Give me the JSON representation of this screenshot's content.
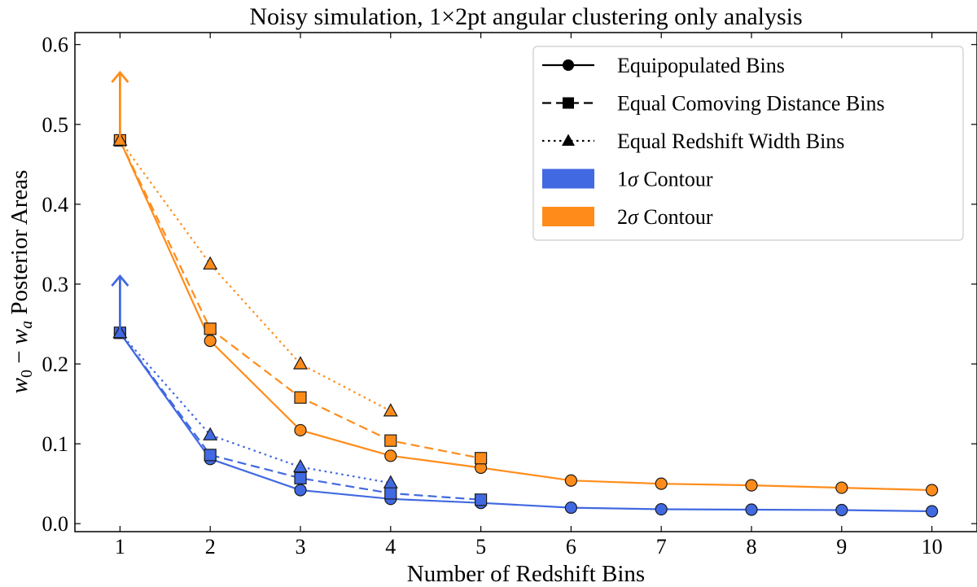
{
  "chart_data": {
    "type": "line",
    "title": "Noisy simulation, 1×2pt angular clustering only analysis",
    "xlabel": "Number of Redshift Bins",
    "ylabel_parts": [
      "w",
      "0",
      " − ",
      "w",
      "a",
      " Posterior Areas"
    ],
    "xlim": [
      0.5,
      10.5
    ],
    "ylim": [
      -0.01,
      0.615
    ],
    "xticks": [
      1,
      2,
      3,
      4,
      5,
      6,
      7,
      8,
      9,
      10
    ],
    "yticks": [
      0.0,
      0.1,
      0.2,
      0.3,
      0.4,
      0.5,
      0.6
    ],
    "ytick_labels": [
      "0.0",
      "0.1",
      "0.2",
      "0.3",
      "0.4",
      "0.5",
      "0.6"
    ],
    "grid": false,
    "legend_position": "top-right",
    "legend": {
      "entries": [
        {
          "label": "Equipopulated Bins",
          "kind": "line",
          "dash": "solid",
          "marker": "circle"
        },
        {
          "label": "Equal Comoving Distance Bins",
          "kind": "line",
          "dash": "dashed",
          "marker": "square"
        },
        {
          "label": "Equal Redshift Width Bins",
          "kind": "line",
          "dash": "dotted",
          "marker": "triangle"
        },
        {
          "label_parts": [
            "1",
            "σ",
            " Contour"
          ],
          "kind": "patch",
          "color": "#4169e1"
        },
        {
          "label_parts": [
            "2",
            "σ",
            " Contour"
          ],
          "kind": "patch",
          "color": "#ff8c1a"
        }
      ]
    },
    "colors": {
      "sigma1": "#4169e1",
      "sigma2": "#ff8c1a",
      "edge": "#1a1a1a"
    },
    "series": [
      {
        "contour": "1σ",
        "binning": "Equipopulated",
        "color": "#4169e1",
        "dash": "solid",
        "marker": "circle",
        "x": [
          1,
          2,
          3,
          4,
          5,
          6,
          7,
          8,
          9,
          10
        ],
        "y": [
          0.239,
          0.081,
          0.042,
          0.031,
          0.026,
          0.02,
          0.018,
          0.0175,
          0.017,
          0.0155
        ]
      },
      {
        "contour": "1σ",
        "binning": "Equal Comoving Distance",
        "color": "#4169e1",
        "dash": "dashed",
        "marker": "square",
        "x": [
          1,
          2,
          3,
          4,
          5
        ],
        "y": [
          0.239,
          0.086,
          0.057,
          0.038,
          0.03
        ]
      },
      {
        "contour": "1σ",
        "binning": "Equal Redshift Width",
        "color": "#4169e1",
        "dash": "dotted",
        "marker": "triangle",
        "x": [
          1,
          2,
          3,
          4
        ],
        "y": [
          0.239,
          0.111,
          0.071,
          0.051
        ]
      },
      {
        "contour": "2σ",
        "binning": "Equipopulated",
        "color": "#ff8c1a",
        "dash": "solid",
        "marker": "circle",
        "x": [
          1,
          2,
          3,
          4,
          5,
          6,
          7,
          8,
          9,
          10
        ],
        "y": [
          0.48,
          0.229,
          0.117,
          0.085,
          0.07,
          0.054,
          0.05,
          0.048,
          0.045,
          0.042
        ]
      },
      {
        "contour": "2σ",
        "binning": "Equal Comoving Distance",
        "color": "#ff8c1a",
        "dash": "dashed",
        "marker": "square",
        "x": [
          1,
          2,
          3,
          4,
          5
        ],
        "y": [
          0.48,
          0.244,
          0.158,
          0.104,
          0.082
        ]
      },
      {
        "contour": "2σ",
        "binning": "Equal Redshift Width",
        "color": "#ff8c1a",
        "dash": "dotted",
        "marker": "triangle",
        "x": [
          1,
          2,
          3,
          4
        ],
        "y": [
          0.48,
          0.325,
          0.2,
          0.141
        ]
      }
    ],
    "arrows": [
      {
        "x": 1,
        "from": 0.239,
        "to": 0.31,
        "color": "#4169e1"
      },
      {
        "x": 1,
        "from": 0.48,
        "to": 0.565,
        "color": "#ff8c1a"
      }
    ]
  }
}
